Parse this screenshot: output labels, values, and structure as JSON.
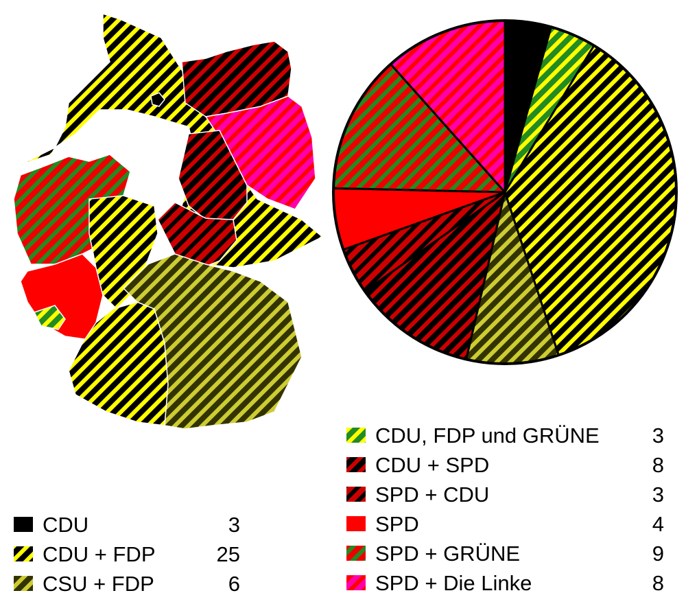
{
  "chart_data": {
    "type": "pie",
    "title": "",
    "series": [
      {
        "name": "CDU",
        "value": 3,
        "color": "#000000",
        "pattern": "solid"
      },
      {
        "name": "CDU, FDP und GRÜNE",
        "value": 3,
        "color": "#228b22",
        "stripe_color": "#ffff00",
        "pattern": "hatched"
      },
      {
        "name": "CDU + FDP",
        "value": 25,
        "color": "#000000",
        "stripe_color": "#ffff00",
        "pattern": "hatched"
      },
      {
        "name": "CSU + FDP",
        "value": 6,
        "color": "#333300",
        "stripe_color": "#cccc33",
        "pattern": "hatched"
      },
      {
        "name": "CDU + SPD",
        "value": 8,
        "color": "#000000",
        "stripe_color": "#cc0000",
        "pattern": "hatched"
      },
      {
        "name": "SPD + CDU",
        "value": 3,
        "color": "#cc0000",
        "stripe_color": "#000000",
        "pattern": "hatched"
      },
      {
        "name": "SPD",
        "value": 4,
        "color": "#ff0000",
        "pattern": "solid"
      },
      {
        "name": "SPD + GRÜNE",
        "value": 9,
        "color": "#ee0000",
        "stripe_color": "#228b22",
        "pattern": "hatched"
      },
      {
        "name": "SPD + Die Linke",
        "value": 8,
        "color": "#ff00aa",
        "stripe_color": "#ff0000",
        "pattern": "hatched"
      }
    ],
    "legend_left": [
      {
        "label": "CDU",
        "value": "3"
      },
      {
        "label": "CDU + FDP",
        "value": "25"
      },
      {
        "label": "CSU + FDP",
        "value": "6"
      }
    ],
    "legend_right": [
      {
        "label": "CDU, FDP und GRÜNE",
        "value": "3"
      },
      {
        "label": "CDU + SPD",
        "value": "8"
      },
      {
        "label": "SPD + CDU",
        "value": "3"
      },
      {
        "label": "SPD",
        "value": "4"
      },
      {
        "label": "SPD + GRÜNE",
        "value": "9"
      },
      {
        "label": "SPD + Die Linke",
        "value": "8"
      }
    ],
    "map_regions": [
      {
        "party": "CDU + FDP",
        "region": "north-west"
      },
      {
        "party": "CDU",
        "region": "Hamburg"
      },
      {
        "party": "CDU + SPD",
        "region": "Mecklenburg-Vorpommern"
      },
      {
        "party": "SPD + Die Linke",
        "region": "Brandenburg"
      },
      {
        "party": "CDU + SPD",
        "region": "Sachsen-Anhalt"
      },
      {
        "party": "SPD + CDU",
        "region": "Thüringen"
      },
      {
        "party": "CDU + FDP",
        "region": "Sachsen"
      },
      {
        "party": "SPD + GRÜNE",
        "region": "Nordrhein-Westfalen"
      },
      {
        "party": "SPD",
        "region": "Rheinland-Pfalz"
      },
      {
        "party": "CDU, FDP und GRÜNE",
        "region": "Saarland"
      },
      {
        "party": "CDU + FDP",
        "region": "Hessen"
      },
      {
        "party": "CDU + FDP",
        "region": "Baden-Württemberg"
      },
      {
        "party": "CSU + FDP",
        "region": "Bayern"
      }
    ]
  }
}
